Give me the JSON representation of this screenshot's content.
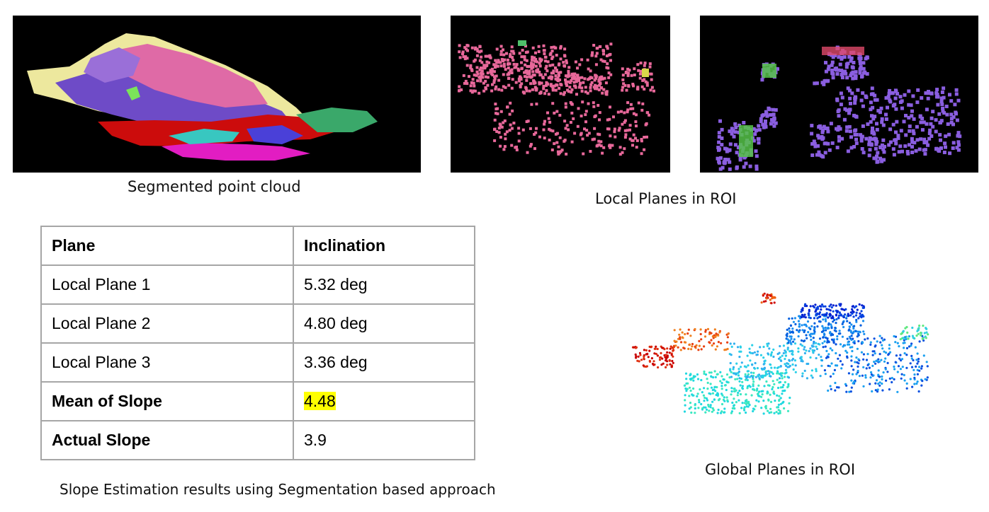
{
  "captions": {
    "segmented": "Segmented point cloud",
    "local": "Local Planes in ROI",
    "global": "Global Planes in ROI",
    "table": "Slope Estimation results using Segmentation based approach"
  },
  "table": {
    "headers": [
      "Plane",
      "Inclination"
    ],
    "rows": [
      {
        "label": "Local Plane 1",
        "value": "5.32 deg"
      },
      {
        "label": "Local Plane 2",
        "value": "4.80 deg"
      },
      {
        "label": "Local Plane 3",
        "value": "3.36 deg"
      }
    ],
    "mean": {
      "label": "Mean of Slope",
      "value": "4.48",
      "highlight": "#ffff00"
    },
    "actual": {
      "label": "Actual Slope",
      "value": "3.9"
    }
  },
  "colors": {
    "panel_bg": "#000000",
    "pink": "#e8689a",
    "purple": "#7b5cd6",
    "yellow_green": "#e9e69a",
    "red": "#d40a0a",
    "highlight": "#ffff00"
  }
}
